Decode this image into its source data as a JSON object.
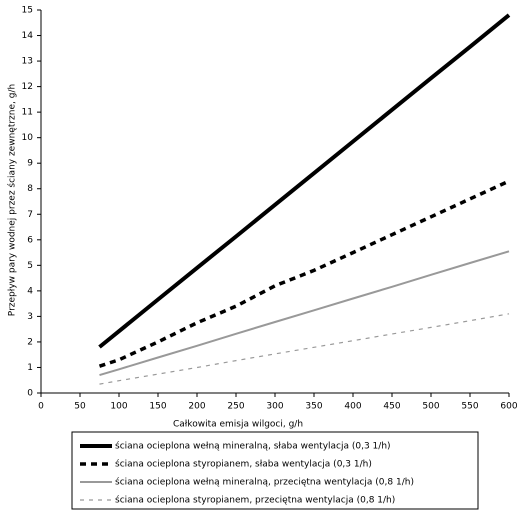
{
  "chart_data": {
    "type": "line",
    "x_label": "Całkowita emisja wilgoci, g/h",
    "y_label": "Przepływ pary wodnej przez ściany zewnętrzne, g/h",
    "x": [
      75,
      100,
      150,
      200,
      250,
      300,
      350,
      400,
      450,
      500,
      550,
      600
    ],
    "series": [
      {
        "name": "ściana ocieplona wełną mineralną, słaba wentylacja (0,3 1/h)",
        "color": "#000000",
        "dash": false,
        "values": [
          1.8,
          2.42,
          3.66,
          4.9,
          6.13,
          7.37,
          8.61,
          9.85,
          11.09,
          12.33,
          13.56,
          14.8
        ]
      },
      {
        "name": "ściana ocieplona styropianem, słaba wentylacja (0,3 1/h)",
        "color": "#000000",
        "dash": true,
        "values": [
          1.05,
          1.3,
          2.0,
          2.75,
          3.4,
          4.2,
          4.8,
          5.5,
          6.2,
          6.9,
          7.6,
          8.3
        ]
      },
      {
        "name": "ściana ocieplona wełną mineralną, przeciętna wentylacja (0,8 1/h)",
        "color": "#999999",
        "dash": false,
        "values": [
          0.7,
          0.93,
          1.39,
          1.85,
          2.32,
          2.78,
          3.24,
          3.7,
          4.16,
          4.63,
          5.09,
          5.55
        ]
      },
      {
        "name": "ściana ocieplona styropianem, przeciętna wentylacja (0,8 1/h)",
        "color": "#999999",
        "dash": true,
        "values": [
          0.35,
          0.48,
          0.74,
          1.0,
          1.27,
          1.53,
          1.79,
          2.05,
          2.31,
          2.57,
          2.83,
          3.1
        ]
      }
    ],
    "xlim": [
      0,
      600
    ],
    "xticks": [
      0,
      50,
      100,
      150,
      200,
      250,
      300,
      350,
      400,
      450,
      500,
      550,
      600
    ],
    "ylim": [
      0,
      15
    ],
    "yticks": [
      0,
      1,
      2,
      3,
      4,
      5,
      6,
      7,
      8,
      9,
      10,
      11,
      12,
      13,
      14,
      15
    ],
    "grid": false,
    "legend": "bottom"
  }
}
